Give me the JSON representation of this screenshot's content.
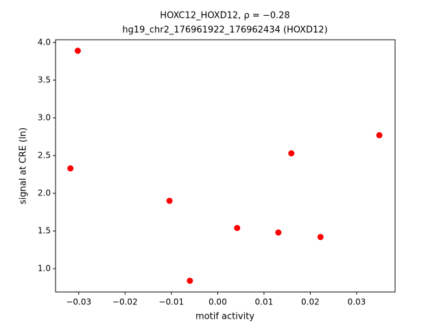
{
  "chart_data": {
    "type": "scatter",
    "title": "HOXC12_HOXD12, ρ = −0.28",
    "subtitle": "hg19_chr2_176961922_176962434 (HOXD12)",
    "x_label": "motif activity",
    "y_label": "signal at CRE (ln)",
    "color": "#ff0000",
    "x": [
      -0.0302,
      -0.0318,
      -0.0104,
      -0.006,
      0.0042,
      0.0131,
      0.0159,
      0.0222,
      0.0349
    ],
    "values": [
      3.89,
      2.33,
      1.9,
      0.84,
      1.54,
      1.48,
      2.53,
      1.42,
      2.77
    ],
    "xlim": [
      -0.035,
      0.0383
    ],
    "ylim": [
      0.691,
      4.036
    ],
    "xticks": [
      {
        "value": -0.03,
        "label": "−0.03"
      },
      {
        "value": -0.02,
        "label": "−0.02"
      },
      {
        "value": -0.01,
        "label": "−0.01"
      },
      {
        "value": 0,
        "label": "0.00"
      },
      {
        "value": 0.01,
        "label": "0.01"
      },
      {
        "value": 0.02,
        "label": "0.02"
      },
      {
        "value": 0.03,
        "label": "0.03"
      }
    ],
    "yticks": [
      {
        "value": 1,
        "label": "1.0"
      },
      {
        "value": 1.5,
        "label": "1.5"
      },
      {
        "value": 2,
        "label": "2.0"
      },
      {
        "value": 2.5,
        "label": "2.5"
      },
      {
        "value": 3,
        "label": "3.0"
      },
      {
        "value": 3.5,
        "label": "3.5"
      },
      {
        "value": 4,
        "label": "4.0"
      }
    ]
  }
}
